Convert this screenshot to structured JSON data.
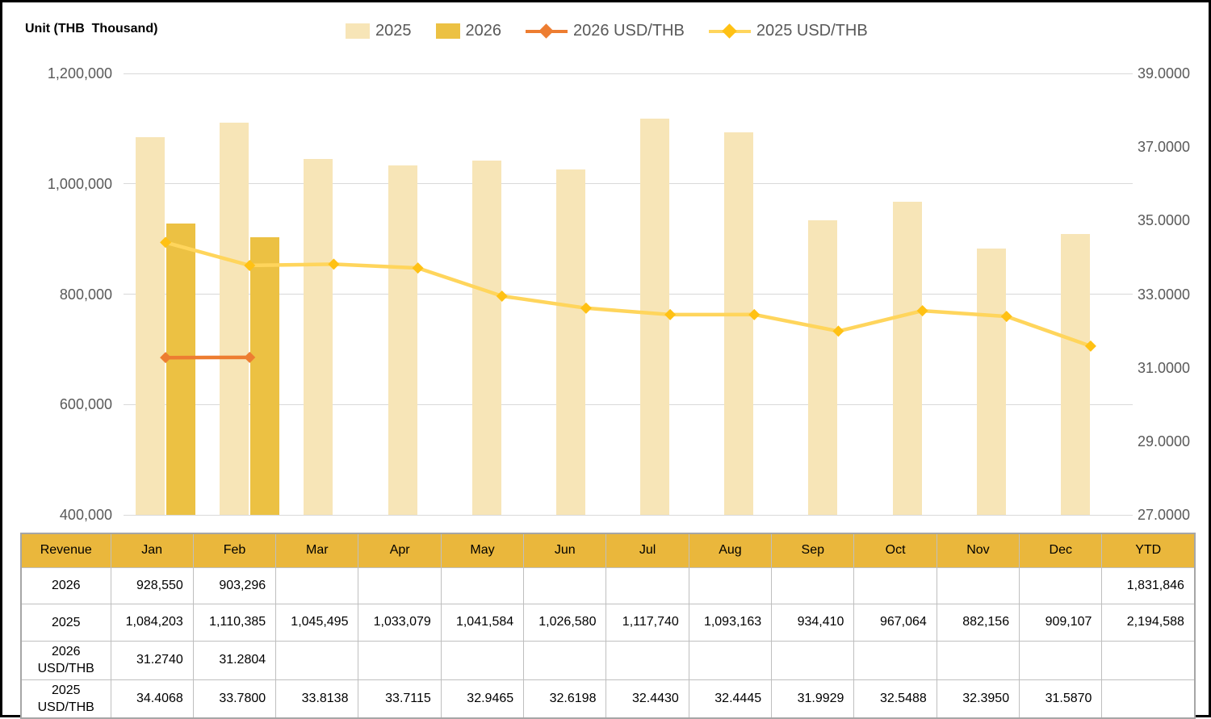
{
  "title": "Unit (THB  Thousand)",
  "legend": {
    "items": [
      {
        "label": "2025",
        "type": "swatch",
        "color": "#F7E5B7"
      },
      {
        "label": "2026",
        "type": "swatch",
        "color": "#ECC143"
      },
      {
        "label": "2026 USD/THB",
        "type": "line",
        "line_color": "#ED7D31",
        "marker_color": "#ED7D31"
      },
      {
        "label": "2025 USD/THB",
        "type": "line",
        "line_color": "#FFD55C",
        "marker_color": "#FFC114"
      }
    ]
  },
  "chart_data": {
    "type": "combo bar-line",
    "title": "Unit (THB  Thousand)",
    "categories": [
      "Jan",
      "Feb",
      "Mar",
      "Apr",
      "May",
      "Jun",
      "Jul",
      "Aug",
      "Sep",
      "Oct",
      "Nov",
      "Dec"
    ],
    "series": [
      {
        "name": "2025",
        "type": "bar",
        "axis": "left",
        "color": "#F7E5B7",
        "values": [
          1084203,
          1110385,
          1045495,
          1033079,
          1041584,
          1026580,
          1117740,
          1093163,
          934410,
          967064,
          882156,
          909107
        ]
      },
      {
        "name": "2026",
        "type": "bar",
        "axis": "left",
        "color": "#ECC143",
        "values": [
          928550,
          903296,
          null,
          null,
          null,
          null,
          null,
          null,
          null,
          null,
          null,
          null
        ]
      },
      {
        "name": "2026 USD/THB",
        "type": "line",
        "axis": "right",
        "line_color": "#ED7D31",
        "marker_color": "#ED7D31",
        "values": [
          31.274,
          31.2804,
          null,
          null,
          null,
          null,
          null,
          null,
          null,
          null,
          null,
          null
        ]
      },
      {
        "name": "2025 USD/THB",
        "type": "line",
        "axis": "right",
        "line_color": "#FFD55C",
        "marker_color": "#FFC114",
        "values": [
          34.4068,
          33.78,
          33.8138,
          33.7115,
          32.9465,
          32.6198,
          32.443,
          32.4445,
          31.9929,
          32.5488,
          32.395,
          31.587
        ]
      }
    ],
    "left_axis": {
      "min": 400000,
      "max": 1200000,
      "ticks": [
        {
          "value": 1200000,
          "label": "1,200,000"
        },
        {
          "value": 1000000,
          "label": "1,000,000"
        },
        {
          "value": 800000,
          "label": "800,000"
        },
        {
          "value": 600000,
          "label": "600,000"
        },
        {
          "value": 400000,
          "label": "400,000"
        }
      ]
    },
    "right_axis": {
      "min": 27,
      "max": 39,
      "ticks": [
        {
          "value": 39,
          "label": "39.0000"
        },
        {
          "value": 37,
          "label": "37.0000"
        },
        {
          "value": 35,
          "label": "35.0000"
        },
        {
          "value": 33,
          "label": "33.0000"
        },
        {
          "value": 31,
          "label": "31.0000"
        },
        {
          "value": 29,
          "label": "29.0000"
        },
        {
          "value": 27,
          "label": "27.0000"
        }
      ]
    },
    "grid": true,
    "legend_position": "top"
  },
  "table": {
    "headers": [
      "Revenue",
      "Jan",
      "Feb",
      "Mar",
      "Apr",
      "May",
      "Jun",
      "Jul",
      "Aug",
      "Sep",
      "Oct",
      "Nov",
      "Dec",
      "YTD"
    ],
    "rows": [
      {
        "label": "2026",
        "cells": [
          "928,550",
          "903,296",
          "",
          "",
          "",
          "",
          "",
          "",
          "",
          "",
          "",
          "",
          "1,831,846"
        ]
      },
      {
        "label": "2025",
        "cells": [
          "1,084,203",
          "1,110,385",
          "1,045,495",
          "1,033,079",
          "1,041,584",
          "1,026,580",
          "1,117,740",
          "1,093,163",
          "934,410",
          "967,064",
          "882,156",
          "909,107",
          "2,194,588"
        ]
      },
      {
        "label": "2026 USD/THB",
        "cells": [
          "31.2740",
          "31.2804",
          "",
          "",
          "",
          "",
          "",
          "",
          "",
          "",
          "",
          "",
          ""
        ]
      },
      {
        "label": "2025 USD/THB",
        "cells": [
          "34.4068",
          "33.7800",
          "33.8138",
          "33.7115",
          "32.9465",
          "32.6198",
          "32.4430",
          "32.4445",
          "31.9929",
          "32.5488",
          "32.3950",
          "31.5870",
          ""
        ]
      }
    ]
  },
  "colors": {
    "table_header_bg": "#EAB73C",
    "bar_2025": "#F7E5B7",
    "bar_2026": "#ECC143",
    "line_2026": "#ED7D31",
    "line_2025": "#FFD55C",
    "marker_2025": "#FFC114",
    "gridline": "#D9D9D9",
    "axis_text": "#595959",
    "table_border": "#BFBFBF"
  }
}
